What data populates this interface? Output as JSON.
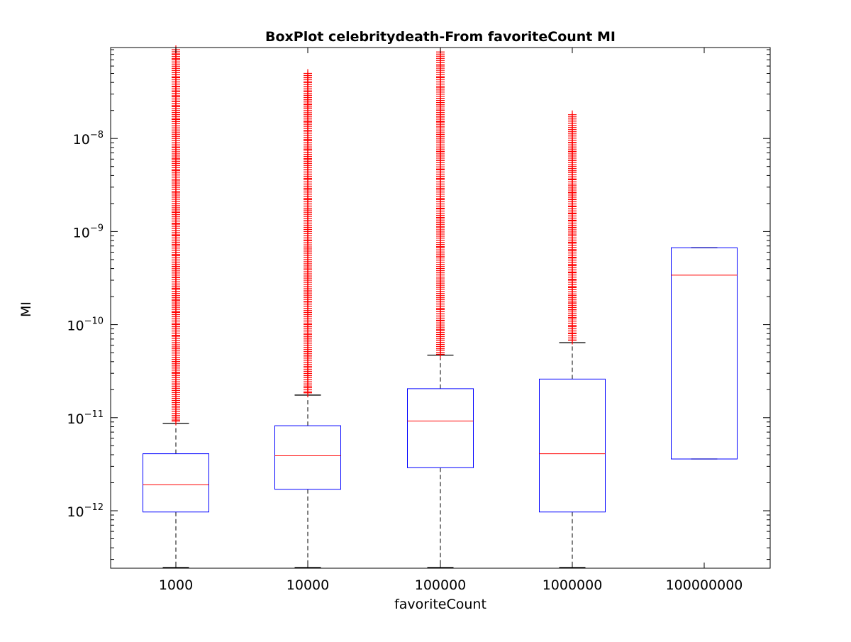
{
  "chart_data": {
    "type": "boxplot",
    "title": "BoxPlot celebritydeath-From favoriteCount MI",
    "xlabel": "favoriteCount",
    "ylabel": "MI",
    "yscale": "log",
    "ylim": [
      2.4e-13,
      9e-08
    ],
    "yticks": [
      {
        "value": 1e-12,
        "base": "10",
        "exp": "−12"
      },
      {
        "value": 1e-11,
        "base": "10",
        "exp": "−11"
      },
      {
        "value": 1e-10,
        "base": "10",
        "exp": "−10"
      },
      {
        "value": 1e-09,
        "base": "10",
        "exp": "−9"
      },
      {
        "value": 1e-08,
        "base": "10",
        "exp": "−8"
      }
    ],
    "categories": [
      "1000",
      "10000",
      "100000",
      "1000000",
      "100000000"
    ],
    "boxes": [
      {
        "category": "1000",
        "whisker_low": 2.4e-13,
        "q1": 9.7e-13,
        "median": 1.9e-12,
        "q3": 4.1e-12,
        "whisker_high": 8.7e-12,
        "outliers": [
          9e-08,
          8e-08,
          7e-08,
          4.5e-08,
          3.6e-08,
          3.2e-08,
          2.8e-08,
          2.5e-08,
          2.2e-08,
          2e-08,
          1.9e-08,
          1.6e-08,
          1.3e-08,
          1e-08,
          8e-09,
          6e-09,
          4.5e-09,
          3.5e-09,
          2.6e-09,
          2e-09,
          1.6e-09,
          1.2e-09,
          9e-10,
          7e-10,
          5.5e-10,
          4.2e-10,
          3.2e-10,
          2.4e-10,
          1.8e-10,
          1.35e-10,
          1e-10,
          7.5e-11,
          5.5e-11,
          4e-11,
          3e-11,
          2.3e-11,
          1.7e-11,
          1.3e-11,
          1.05e-11,
          9.2e-12
        ]
      },
      {
        "category": "10000",
        "whisker_low": 2.4e-13,
        "q1": 1.7e-12,
        "median": 3.9e-12,
        "q3": 8.2e-12,
        "whisker_high": 1.75e-11,
        "outliers": [
          5e-08,
          4.5e-08,
          4e-08,
          3.6e-08,
          3.2e-08,
          2.9e-08,
          2.6e-08,
          2.3e-08,
          2.1e-08,
          1.8e-08,
          1.5e-08,
          1.2e-08,
          9.5e-09,
          7.5e-09,
          6e-09,
          4.6e-09,
          3.6e-09,
          2.8e-09,
          2.2e-09,
          1.7e-09,
          1.3e-09,
          1e-09,
          8e-10,
          6.5e-10,
          5e-10,
          3.9e-10,
          3e-10,
          2.3e-10,
          1.75e-10,
          1.35e-10,
          1e-10,
          7.8e-11,
          6e-11,
          4.6e-11,
          3.5e-11,
          2.7e-11,
          2.1e-11,
          1.85e-11
        ]
      },
      {
        "category": "100000",
        "whisker_low": 2.4e-13,
        "q1": 2.9e-12,
        "median": 9.2e-12,
        "q3": 2.05e-11,
        "whisker_high": 4.7e-11,
        "outliers": [
          8.5e-08,
          6e-08,
          4.5e-08,
          3.5e-08,
          2.7e-08,
          2.3e-08,
          2e-08,
          1.7e-08,
          1.5e-08,
          1.3e-08,
          1.1e-08,
          9e-09,
          7.2e-09,
          5.8e-09,
          4.6e-09,
          3.6e-09,
          2.8e-09,
          2.2e-09,
          1.75e-09,
          1.4e-09,
          1.1e-09,
          8.5e-10,
          6.7e-10,
          5.2e-10,
          4e-10,
          3.1e-10,
          2.4e-10,
          1.85e-10,
          1.45e-10,
          1.1e-10,
          8.7e-11,
          6.8e-11,
          5.3e-11,
          4.8e-11
        ]
      },
      {
        "category": "1000000",
        "whisker_low": 2.4e-13,
        "q1": 9.7e-13,
        "median": 4.1e-12,
        "q3": 2.6e-11,
        "whisker_high": 6.4e-11,
        "outliers": [
          1.8e-08,
          9e-09,
          7.2e-09,
          5.8e-09,
          5e-09,
          4.3e-09,
          3.6e-09,
          3.1e-09,
          2.6e-09,
          2.2e-09,
          1.85e-09,
          1.55e-09,
          1.3e-09,
          1.1e-09,
          9e-10,
          7.5e-10,
          6.2e-10,
          5.2e-10,
          4.3e-10,
          3.6e-10,
          3e-10,
          2.5e-10,
          2.05e-10,
          1.7e-10,
          1.4e-10,
          1.15e-10,
          9.5e-11,
          8e-11,
          6.8e-11
        ]
      },
      {
        "category": "100000000",
        "whisker_low": 3.6e-12,
        "q1": 3.6e-12,
        "median": 3.4e-10,
        "q3": 6.7e-10,
        "whisker_high": 6.7e-10,
        "outliers": []
      }
    ],
    "colors": {
      "box": "#0000ff",
      "median": "#ff0000",
      "outlier": "#ff0000",
      "whisker": "#000000",
      "axes": "#000000"
    },
    "grid": false,
    "legend": "none"
  }
}
